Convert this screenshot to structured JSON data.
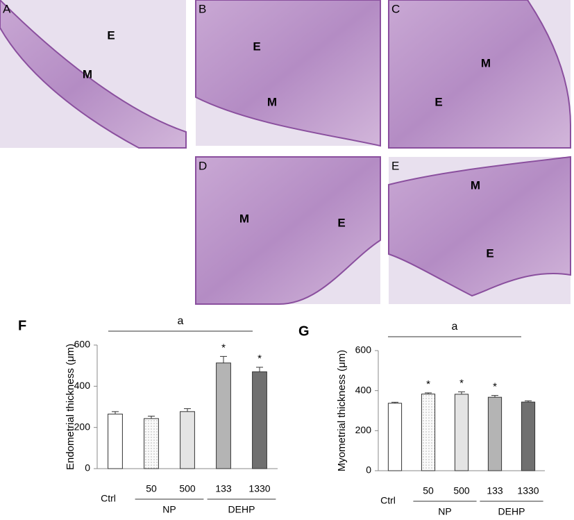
{
  "panels": [
    {
      "letter": "A",
      "labels": [
        "E",
        "M"
      ]
    },
    {
      "letter": "B",
      "labels": [
        "E",
        "M"
      ]
    },
    {
      "letter": "C",
      "labels": [
        "M",
        "E"
      ]
    },
    {
      "letter": "D",
      "labels": [
        "M",
        "E"
      ]
    },
    {
      "letter": "E",
      "labels": [
        "M",
        "E"
      ]
    }
  ],
  "chart_data": [
    {
      "type": "bar",
      "panel_label": "F",
      "y_label": "Endometrial thickness (μm)",
      "categories": [
        "Ctrl",
        "50",
        "500",
        "133",
        "1330"
      ],
      "values": [
        265,
        243,
        277,
        513,
        470
      ],
      "errors": [
        12,
        12,
        14,
        32,
        22
      ],
      "significance": [
        null,
        null,
        null,
        "*",
        "*"
      ],
      "colors": [
        "#ffffff",
        "#f2f2f2",
        "#e4e4e4",
        "#b4b4b4",
        "#707070"
      ],
      "groups": [
        {
          "label": "NP",
          "start": 1,
          "end": 2
        },
        {
          "label": "DEHP",
          "start": 3,
          "end": 4
        }
      ],
      "bracket_label": "a",
      "ylim": [
        0,
        600
      ],
      "yticks": [
        0,
        200,
        400,
        600
      ]
    },
    {
      "type": "bar",
      "panel_label": "G",
      "y_label": "Myometrial thickness (μm)",
      "categories": [
        "Ctrl",
        "50",
        "500",
        "133",
        "1330"
      ],
      "values": [
        337,
        383,
        382,
        367,
        343
      ],
      "errors": [
        5,
        6,
        12,
        9,
        6
      ],
      "significance": [
        null,
        "*",
        "*",
        "*",
        null
      ],
      "colors": [
        "#ffffff",
        "#f2f2f2",
        "#e4e4e4",
        "#b4b4b4",
        "#707070"
      ],
      "groups": [
        {
          "label": "NP",
          "start": 1,
          "end": 2
        },
        {
          "label": "DEHP",
          "start": 3,
          "end": 4
        }
      ],
      "bracket_label": "a",
      "ylim": [
        0,
        600
      ],
      "yticks": [
        0,
        200,
        400,
        600
      ]
    }
  ]
}
